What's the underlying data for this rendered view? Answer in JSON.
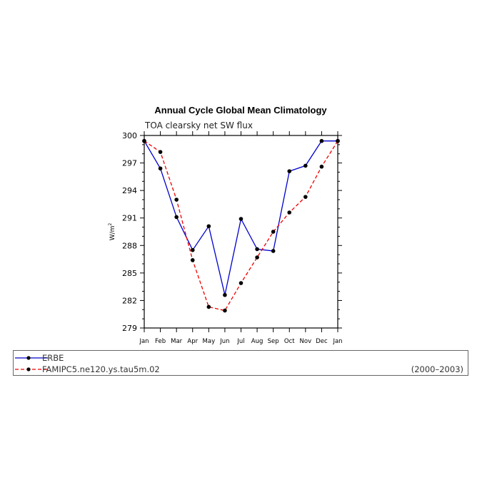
{
  "chart_data": {
    "type": "line",
    "title": "Annual Cycle Global Mean Climatology",
    "subtitle": "TOA clearsky net SW flux",
    "ylabel": "W/m",
    "ylabel_sup": "2",
    "xlabel": "",
    "categories": [
      "Jan",
      "Feb",
      "Mar",
      "Apr",
      "May",
      "Jun",
      "Jul",
      "Aug",
      "Sep",
      "Oct",
      "Nov",
      "Dec",
      "Jan"
    ],
    "ylim": [
      279,
      300
    ],
    "yticks": [
      "279",
      "282",
      "285",
      "288",
      "291",
      "294",
      "297",
      "300"
    ],
    "series": [
      {
        "name": "ERBE",
        "color": "#0000cc",
        "style": "solid",
        "values": [
          299.4,
          296.4,
          291.1,
          287.5,
          290.1,
          282.6,
          290.9,
          287.6,
          287.4,
          296.1,
          296.7,
          299.4,
          299.4
        ]
      },
      {
        "name": "FAMIPC5.ne120.ys.tau5m.02",
        "color": "#ee0000",
        "style": "dashed",
        "values": [
          299.4,
          298.2,
          293.0,
          286.4,
          281.3,
          280.9,
          283.9,
          286.7,
          289.5,
          291.6,
          293.3,
          296.6,
          299.4
        ]
      }
    ],
    "grid": false,
    "legend_position": "bottom"
  },
  "legend": {
    "period": "(2000–2003)"
  }
}
